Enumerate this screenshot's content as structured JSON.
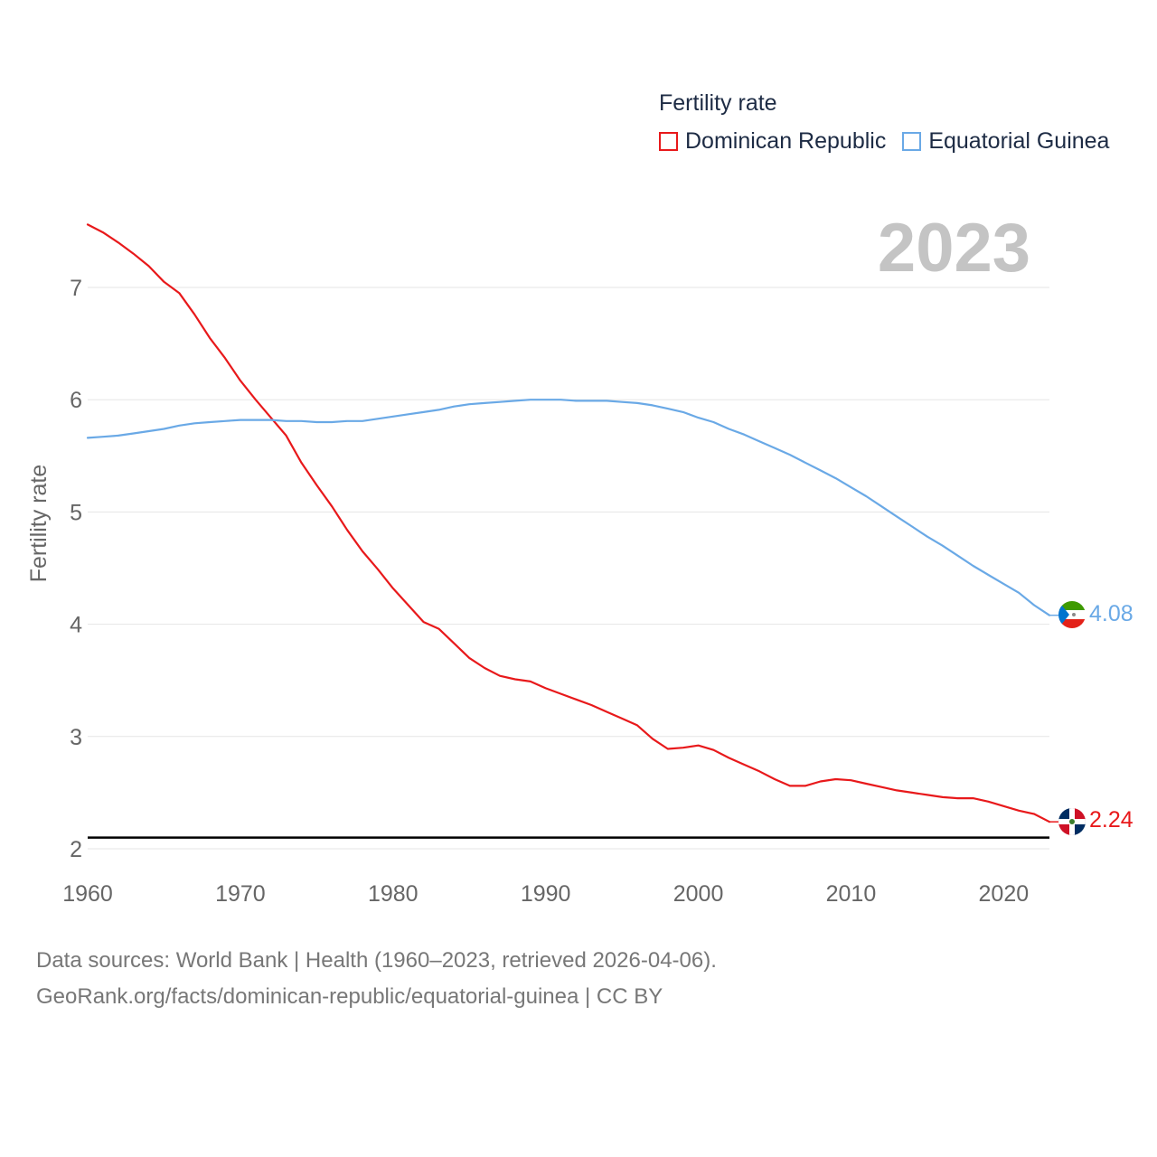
{
  "legend": {
    "title": "Fertility rate",
    "items": [
      {
        "label": "Dominican Republic",
        "color": "#e8191b"
      },
      {
        "label": "Equatorial Guinea",
        "color": "#6aa9e6"
      }
    ]
  },
  "sources": {
    "line1": "Data sources: World Bank | Health (1960–2023, retrieved 2026-04-06).",
    "line2": "GeoRank.org/facts/dominican-republic/equatorial-guinea | CC BY"
  },
  "chart_data": {
    "type": "line",
    "year_label": "2023",
    "ylabel": "Fertility rate",
    "xlabel": "",
    "xlim": [
      1960,
      2023
    ],
    "ylim": [
      2,
      7.6
    ],
    "yticks": [
      2,
      3,
      4,
      5,
      6,
      7
    ],
    "xticks": [
      1960,
      1970,
      1980,
      1990,
      2000,
      2010,
      2020
    ],
    "reference_line": 2.1,
    "x": [
      1960,
      1961,
      1962,
      1963,
      1964,
      1965,
      1966,
      1967,
      1968,
      1969,
      1970,
      1971,
      1972,
      1973,
      1974,
      1975,
      1976,
      1977,
      1978,
      1979,
      1980,
      1981,
      1982,
      1983,
      1984,
      1985,
      1986,
      1987,
      1988,
      1989,
      1990,
      1991,
      1992,
      1993,
      1994,
      1995,
      1996,
      1997,
      1998,
      1999,
      2000,
      2001,
      2002,
      2003,
      2004,
      2005,
      2006,
      2007,
      2008,
      2009,
      2010,
      2011,
      2012,
      2013,
      2014,
      2015,
      2016,
      2017,
      2018,
      2019,
      2020,
      2021,
      2022,
      2023
    ],
    "series": [
      {
        "name": "Dominican Republic",
        "color": "#e8191b",
        "end_label": "2.24",
        "values": [
          7.56,
          7.49,
          7.4,
          7.3,
          7.19,
          7.05,
          6.95,
          6.76,
          6.55,
          6.37,
          6.17,
          6.0,
          5.84,
          5.68,
          5.44,
          5.24,
          5.05,
          4.84,
          4.65,
          4.49,
          4.32,
          4.17,
          4.02,
          3.96,
          3.83,
          3.7,
          3.61,
          3.54,
          3.51,
          3.49,
          3.43,
          3.38,
          3.33,
          3.28,
          3.22,
          3.16,
          3.1,
          2.98,
          2.89,
          2.9,
          2.92,
          2.88,
          2.81,
          2.75,
          2.69,
          2.62,
          2.56,
          2.56,
          2.6,
          2.62,
          2.61,
          2.58,
          2.55,
          2.52,
          2.5,
          2.48,
          2.46,
          2.45,
          2.45,
          2.42,
          2.38,
          2.34,
          2.31,
          2.24
        ]
      },
      {
        "name": "Equatorial Guinea",
        "color": "#6aa9e6",
        "end_label": "4.08",
        "values": [
          5.66,
          5.67,
          5.68,
          5.7,
          5.72,
          5.74,
          5.77,
          5.79,
          5.8,
          5.81,
          5.82,
          5.82,
          5.82,
          5.81,
          5.81,
          5.8,
          5.8,
          5.81,
          5.81,
          5.83,
          5.85,
          5.87,
          5.89,
          5.91,
          5.94,
          5.96,
          5.97,
          5.98,
          5.99,
          6.0,
          6.0,
          6.0,
          5.99,
          5.99,
          5.99,
          5.98,
          5.97,
          5.95,
          5.92,
          5.89,
          5.84,
          5.8,
          5.74,
          5.69,
          5.63,
          5.57,
          5.51,
          5.44,
          5.37,
          5.3,
          5.22,
          5.14,
          5.05,
          4.96,
          4.87,
          4.78,
          4.7,
          4.61,
          4.52,
          4.44,
          4.36,
          4.28,
          4.17,
          4.08
        ]
      }
    ]
  }
}
